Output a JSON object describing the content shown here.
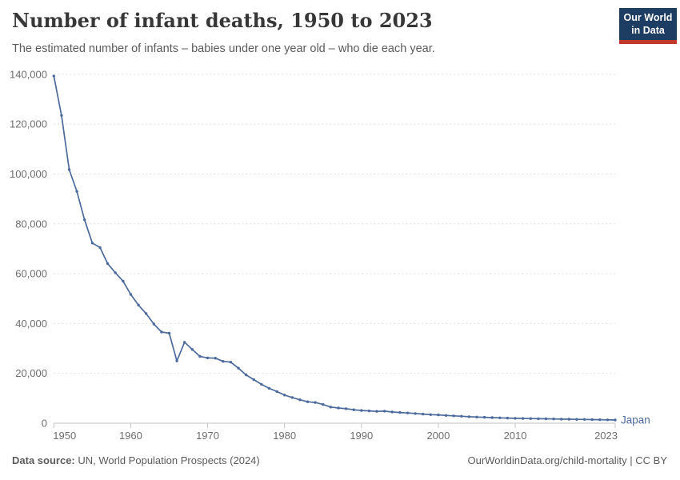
{
  "header": {
    "title": "Number of infant deaths, 1950 to 2023",
    "subtitle": "The estimated number of infants – babies under one year old – who die each year."
  },
  "logo": {
    "line1": "Our World",
    "line2": "in Data",
    "bg_color": "#1D3D63",
    "bar_color": "#C0392B"
  },
  "footer": {
    "source_label": "Data source:",
    "source_text": " UN, World Population Prospects (2024)",
    "credit": "OurWorldinData.org/child-mortality | CC BY"
  },
  "chart_data": {
    "type": "line",
    "title": "Number of infant deaths, 1950 to 2023",
    "xlabel": "",
    "ylabel": "",
    "ylim": [
      0,
      140000
    ],
    "yticks": [
      0,
      20000,
      40000,
      60000,
      80000,
      100000,
      120000,
      140000
    ],
    "xticks": [
      1950,
      1960,
      1970,
      1980,
      1990,
      2000,
      2010,
      2023
    ],
    "grid": "horizontal-dashed",
    "legend_position": "end-of-line-label",
    "grid_color": "#DEDEDE",
    "axis_color": "#C3C3C3",
    "tick_label_color": "#6E6E6E",
    "x": [
      1950,
      1951,
      1952,
      1953,
      1954,
      1955,
      1956,
      1957,
      1958,
      1959,
      1960,
      1961,
      1962,
      1963,
      1964,
      1965,
      1966,
      1967,
      1968,
      1969,
      1970,
      1971,
      1972,
      1973,
      1974,
      1975,
      1976,
      1977,
      1978,
      1979,
      1980,
      1981,
      1982,
      1983,
      1984,
      1985,
      1986,
      1987,
      1988,
      1989,
      1990,
      1991,
      1992,
      1993,
      1994,
      1995,
      1996,
      1997,
      1998,
      1999,
      2000,
      2001,
      2002,
      2003,
      2004,
      2005,
      2006,
      2007,
      2008,
      2009,
      2010,
      2011,
      2012,
      2013,
      2014,
      2015,
      2016,
      2017,
      2018,
      2019,
      2020,
      2021,
      2022,
      2023
    ],
    "series": [
      {
        "name": "Japan",
        "color": "#4C6A9C",
        "values": [
          139300,
          123500,
          101800,
          93000,
          81600,
          72300,
          70500,
          64000,
          60400,
          57000,
          51700,
          47400,
          44000,
          39800,
          36600,
          36100,
          25000,
          32500,
          29600,
          26800,
          26200,
          26100,
          24800,
          24500,
          22100,
          19400,
          17500,
          15600,
          14000,
          12700,
          11300,
          10300,
          9400,
          8600,
          8300,
          7500,
          6500,
          6100,
          5800,
          5400,
          5100,
          4950,
          4750,
          4850,
          4500,
          4300,
          4100,
          3870,
          3650,
          3450,
          3330,
          3130,
          2950,
          2800,
          2600,
          2480,
          2360,
          2250,
          2150,
          2050,
          1950,
          1900,
          1850,
          1800,
          1750,
          1700,
          1650,
          1600,
          1550,
          1500,
          1450,
          1400,
          1350,
          1300
        ]
      }
    ]
  }
}
